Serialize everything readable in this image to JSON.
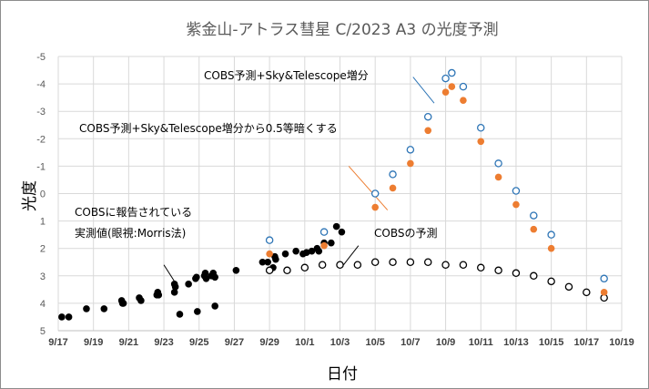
{
  "chart_data": {
    "type": "scatter",
    "title": "紫金山-アトラス彗星 C/2023 A3 の光度予測",
    "xlabel": "日付",
    "ylabel": "光度",
    "x_unit": "days since 9/17",
    "xlim": [
      0,
      32
    ],
    "ylim": [
      5,
      -5
    ],
    "y_inverted": true,
    "grid": true,
    "x_ticks": [
      {
        "day": 0,
        "label": "9/17"
      },
      {
        "day": 2,
        "label": "9/19"
      },
      {
        "day": 4,
        "label": "9/21"
      },
      {
        "day": 6,
        "label": "9/23"
      },
      {
        "day": 8,
        "label": "9/25"
      },
      {
        "day": 10,
        "label": "9/27"
      },
      {
        "day": 12,
        "label": "9/29"
      },
      {
        "day": 14,
        "label": "10/1"
      },
      {
        "day": 16,
        "label": "10/3"
      },
      {
        "day": 18,
        "label": "10/5"
      },
      {
        "day": 20,
        "label": "10/7"
      },
      {
        "day": 22,
        "label": "10/9"
      },
      {
        "day": 24,
        "label": "10/11"
      },
      {
        "day": 26,
        "label": "10/13"
      },
      {
        "day": 28,
        "label": "10/15"
      },
      {
        "day": 30,
        "label": "10/17"
      },
      {
        "day": 32,
        "label": "10/19"
      }
    ],
    "y_ticks": [
      -5,
      -4,
      -3,
      -2,
      -1,
      0,
      1,
      2,
      3,
      4,
      5
    ],
    "series": [
      {
        "name": "COBSに報告されている実測値(眼視:Morris法)",
        "style": "filled-black",
        "color": "#000000",
        "points": [
          [
            0.2,
            4.5
          ],
          [
            0.6,
            4.5
          ],
          [
            1.6,
            4.2
          ],
          [
            2.6,
            4.2
          ],
          [
            3.6,
            3.9
          ],
          [
            3.65,
            4.0
          ],
          [
            3.7,
            4.0
          ],
          [
            4.6,
            3.8
          ],
          [
            4.7,
            3.9
          ],
          [
            5.6,
            3.7
          ],
          [
            5.65,
            3.6
          ],
          [
            5.7,
            3.7
          ],
          [
            6.6,
            3.3
          ],
          [
            6.65,
            3.4
          ],
          [
            6.6,
            3.6
          ],
          [
            6.9,
            4.4
          ],
          [
            7.4,
            3.3
          ],
          [
            7.8,
            3.1
          ],
          [
            7.85,
            3.05
          ],
          [
            7.9,
            4.3
          ],
          [
            8.3,
            3.0
          ],
          [
            8.35,
            2.9
          ],
          [
            8.4,
            3.1
          ],
          [
            8.7,
            3.0
          ],
          [
            8.8,
            2.9
          ],
          [
            8.9,
            3.05
          ],
          [
            8.9,
            4.1
          ],
          [
            10.1,
            2.8
          ],
          [
            11.6,
            2.5
          ],
          [
            11.9,
            2.5
          ],
          [
            12.3,
            2.3
          ],
          [
            12.35,
            2.4
          ],
          [
            12.2,
            2.7
          ],
          [
            12.9,
            2.2
          ],
          [
            13.5,
            2.1
          ],
          [
            13.9,
            2.2
          ],
          [
            14.1,
            2.15
          ],
          [
            14.4,
            2.1
          ],
          [
            14.7,
            2.0
          ],
          [
            14.8,
            2.1
          ],
          [
            15.1,
            1.8
          ],
          [
            15.5,
            1.8
          ],
          [
            15.8,
            1.2
          ],
          [
            16.1,
            1.4
          ]
        ]
      },
      {
        "name": "COBSの予測",
        "style": "open-black",
        "color": "#000000",
        "points": [
          [
            12.0,
            2.8
          ],
          [
            13.0,
            2.8
          ],
          [
            14.0,
            2.7
          ],
          [
            15.0,
            2.6
          ],
          [
            16.0,
            2.6
          ],
          [
            17.0,
            2.6
          ],
          [
            18.0,
            2.5
          ],
          [
            19.0,
            2.5
          ],
          [
            20.0,
            2.5
          ],
          [
            21.0,
            2.5
          ],
          [
            22.0,
            2.6
          ],
          [
            23.0,
            2.6
          ],
          [
            24.0,
            2.7
          ],
          [
            25.0,
            2.8
          ],
          [
            26.0,
            2.9
          ],
          [
            27.0,
            3.0
          ],
          [
            28.0,
            3.2
          ],
          [
            29.0,
            3.4
          ],
          [
            30.0,
            3.6
          ],
          [
            31.0,
            3.8
          ]
        ]
      },
      {
        "name": "COBS予測+Sky&Telescope増分",
        "style": "open-blue",
        "color": "#2e75b6",
        "points": [
          [
            12.0,
            1.7
          ],
          [
            15.1,
            1.4
          ],
          [
            18.0,
            0.0
          ],
          [
            19.0,
            -0.7
          ],
          [
            20.0,
            -1.6
          ],
          [
            21.0,
            -2.8
          ],
          [
            22.0,
            -4.2
          ],
          [
            22.35,
            -4.4
          ],
          [
            23.0,
            -3.9
          ],
          [
            24.0,
            -2.4
          ],
          [
            25.0,
            -1.1
          ],
          [
            26.0,
            -0.1
          ],
          [
            27.0,
            0.8
          ],
          [
            28.0,
            1.5
          ],
          [
            31.0,
            3.1
          ]
        ]
      },
      {
        "name": "COBS予測+Sky&Telescope増分から0.5等暗くする",
        "style": "filled-orange",
        "color": "#ed7d31",
        "points": [
          [
            12.0,
            2.2
          ],
          [
            15.1,
            1.9
          ],
          [
            18.0,
            0.5
          ],
          [
            19.0,
            -0.2
          ],
          [
            20.0,
            -1.1
          ],
          [
            21.0,
            -2.3
          ],
          [
            22.0,
            -3.7
          ],
          [
            22.35,
            -3.9
          ],
          [
            23.0,
            -3.4
          ],
          [
            24.0,
            -1.9
          ],
          [
            25.0,
            -0.6
          ],
          [
            26.0,
            0.4
          ],
          [
            27.0,
            1.3
          ],
          [
            28.0,
            2.0
          ],
          [
            31.0,
            3.6
          ]
        ]
      }
    ],
    "annotations": [
      {
        "id": "blue",
        "text": "COBS予測+Sky&Telescope増分",
        "line_color": "#2e75b6"
      },
      {
        "id": "orange",
        "text": "COBS予測+Sky&Telescope増分から0.5等暗くする",
        "line_color": "#ed7d31"
      },
      {
        "id": "observed",
        "lines": [
          "COBSに報告されている",
          "実測値(眼視:Morris法)"
        ],
        "line_color": "#000000"
      },
      {
        "id": "predicted",
        "text": "COBSの予測",
        "line_color": "#000000"
      }
    ]
  }
}
